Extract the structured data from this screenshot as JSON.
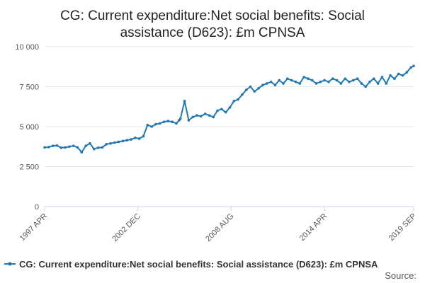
{
  "chart_data": {
    "type": "line",
    "title_lines": [
      "CG: Current expenditure:Net social benefits: Social",
      "assistance (D623): £m CPNSA"
    ],
    "xlabel": "",
    "ylabel": "",
    "ylim": [
      0,
      10000
    ],
    "yticks": [
      {
        "value": 0,
        "label": "0"
      },
      {
        "value": 2500,
        "label": "2 500"
      },
      {
        "value": 5000,
        "label": "5 000"
      },
      {
        "value": 7500,
        "label": "7 500"
      },
      {
        "value": 10000,
        "label": "10 000"
      }
    ],
    "x_range": [
      1997.25,
      2019.667
    ],
    "xticks": [
      {
        "value": 1997.25,
        "label": "1997 APR"
      },
      {
        "value": 2002.917,
        "label": "2002 DEC"
      },
      {
        "value": 2008.583,
        "label": "2008 AUG"
      },
      {
        "value": 2014.25,
        "label": "2014 APR"
      },
      {
        "value": 2019.667,
        "label": "2019 SEP"
      }
    ],
    "grid": true,
    "legend_position": "bottom",
    "series": [
      {
        "name": "CG: Current expenditure:Net social benefits: Social assistance (D623): £m CPNSA",
        "color": "#1f77b4",
        "x": [
          1997.25,
          1997.5,
          1997.75,
          1998.0,
          1998.25,
          1998.5,
          1998.75,
          1999.0,
          1999.25,
          1999.5,
          1999.75,
          2000.0,
          2000.25,
          2000.5,
          2000.75,
          2001.0,
          2001.25,
          2001.5,
          2001.75,
          2002.0,
          2002.25,
          2002.5,
          2002.75,
          2003.0,
          2003.25,
          2003.5,
          2003.75,
          2004.0,
          2004.25,
          2004.5,
          2004.75,
          2005.0,
          2005.25,
          2005.42,
          2005.5,
          2005.75,
          2006.0,
          2006.25,
          2006.5,
          2006.75,
          2007.0,
          2007.25,
          2007.5,
          2007.75,
          2008.0,
          2008.25,
          2008.5,
          2008.75,
          2009.0,
          2009.25,
          2009.5,
          2009.75,
          2010.0,
          2010.25,
          2010.5,
          2010.75,
          2011.0,
          2011.25,
          2011.5,
          2011.75,
          2012.0,
          2012.25,
          2012.5,
          2012.75,
          2013.0,
          2013.25,
          2013.5,
          2013.75,
          2014.0,
          2014.25,
          2014.5,
          2014.75,
          2015.0,
          2015.25,
          2015.5,
          2015.75,
          2016.0,
          2016.25,
          2016.5,
          2016.75,
          2017.0,
          2017.25,
          2017.5,
          2017.75,
          2018.0,
          2018.25,
          2018.5,
          2018.75,
          2019.0,
          2019.25,
          2019.5,
          2019.667
        ],
        "values": [
          3700,
          3720,
          3800,
          3820,
          3680,
          3700,
          3750,
          3800,
          3700,
          3400,
          3800,
          3950,
          3600,
          3680,
          3700,
          3900,
          3950,
          4000,
          4050,
          4100,
          4150,
          4200,
          4300,
          4250,
          4400,
          5100,
          5000,
          5150,
          5200,
          5300,
          5350,
          5300,
          5200,
          5400,
          5500,
          6600,
          5400,
          5600,
          5700,
          5650,
          5800,
          5700,
          5600,
          6000,
          6100,
          5900,
          6200,
          6600,
          6700,
          7000,
          7300,
          7500,
          7200,
          7400,
          7600,
          7700,
          7800,
          7600,
          7900,
          7700,
          8000,
          7900,
          7800,
          7700,
          8100,
          8000,
          7900,
          7700,
          7800,
          7900,
          7800,
          8000,
          7900,
          7700,
          8000,
          7800,
          7900,
          8000,
          7700,
          7500,
          7800,
          8000,
          7700,
          8100,
          7700,
          8200,
          8000,
          8300,
          8200,
          8400,
          8700,
          8800
        ]
      }
    ]
  },
  "source_label": "Source:"
}
